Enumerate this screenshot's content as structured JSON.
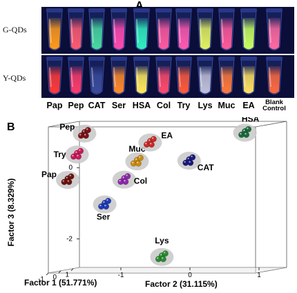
{
  "panel_a": {
    "label": "A",
    "row_g_label": "G-QDs",
    "row_y_label": "Y-QDs",
    "tubes": [
      {
        "name": "Pap",
        "g_color": "#ff9a1a",
        "y_color": "#ff3a3a"
      },
      {
        "name": "Pep",
        "g_color": "#ff5a70",
        "y_color": "#ff3b6a"
      },
      {
        "name": "CAT",
        "g_color": "#48d8a0",
        "y_color": "#3a4c9a"
      },
      {
        "name": "Ser",
        "g_color": "#ff4ab0",
        "y_color": "#ff8a2a"
      },
      {
        "name": "HSA",
        "g_color": "#30f0c0",
        "y_color": "#ffe85a"
      },
      {
        "name": "Col",
        "g_color": "#ff5aa0",
        "y_color": "#ff4a6a"
      },
      {
        "name": "Try",
        "g_color": "#ff5ab0",
        "y_color": "#ff5a3a"
      },
      {
        "name": "Lys",
        "g_color": "#e2f060",
        "y_color": "#c0c0d8"
      },
      {
        "name": "Muc",
        "g_color": "#ff5a9a",
        "y_color": "#ff7a3a"
      },
      {
        "name": "EA",
        "g_color": "#c8ff60",
        "y_color": "#ffe060"
      },
      {
        "name": "Blank\nControl",
        "label_line1": "Blank",
        "label_line2": "Control",
        "g_color": "#ff6aa0",
        "y_color": "#ff6a40"
      }
    ]
  },
  "panel_b": {
    "label": "B",
    "chart_data": {
      "type": "scatter",
      "xlabel": "Factor 1 (51.771%)",
      "ylabel": "Factor 2 (31.115%)",
      "zlabel": "Factor 3 (8.329%)",
      "x_ticks": [
        "-1",
        "0",
        "1"
      ],
      "y_ticks": [
        "-1",
        "0",
        "1"
      ],
      "z_ticks": [
        "0",
        "-2"
      ],
      "x_lim": [
        -1,
        1.5
      ],
      "y_lim": [
        -1.6,
        1.4
      ],
      "z_lim": [
        -2.8,
        1.3
      ],
      "grid": false,
      "series": [
        {
          "name": "Pep",
          "color": "#7a1216",
          "x": 0.8,
          "y": -1.4,
          "z": 1.0
        },
        {
          "name": "Try",
          "color": "#c8185a",
          "x": 0.2,
          "y": -1.4,
          "z": 0.45
        },
        {
          "name": "Pap",
          "color": "#6a1410",
          "x": 0.0,
          "y": -1.5,
          "z": -0.25
        },
        {
          "name": "Ser",
          "color": "#1e3ab4",
          "x": 0.2,
          "y": -1.0,
          "z": -0.95
        },
        {
          "name": "Col",
          "color": "#8a2aa8",
          "x": 0.1,
          "y": -0.7,
          "z": -0.25
        },
        {
          "name": "Muc",
          "color": "#c88a10",
          "x": 0.3,
          "y": -0.55,
          "z": 0.25
        },
        {
          "name": "EA",
          "color": "#c82a2a",
          "x": 0.8,
          "y": -0.45,
          "z": 0.75
        },
        {
          "name": "CAT",
          "color": "#1a1a7a",
          "x": 0.6,
          "y": 0.15,
          "z": 0.25
        },
        {
          "name": "HSA",
          "color": "#1a6a3a",
          "x": 1.2,
          "y": 0.85,
          "z": 1.0
        },
        {
          "name": "Lys",
          "color": "#2a8a30",
          "x": -0.2,
          "y": -0.1,
          "z": -2.4
        }
      ]
    }
  }
}
